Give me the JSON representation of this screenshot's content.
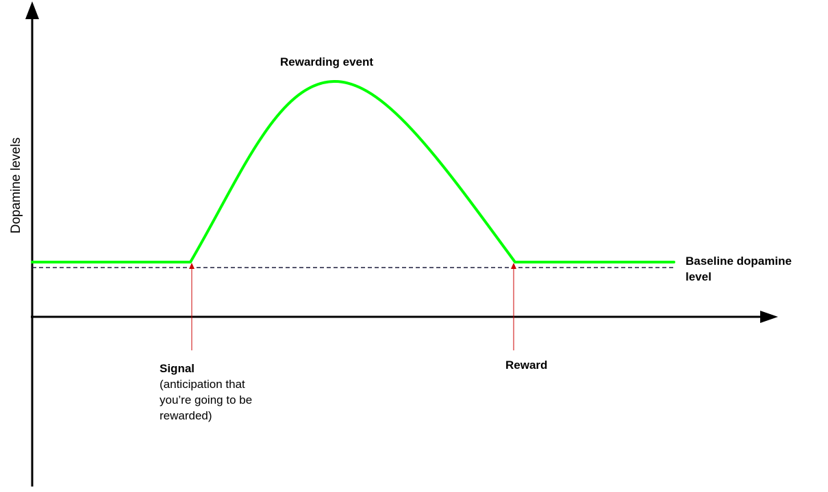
{
  "axes": {
    "y_label": "Dopamine levels"
  },
  "annotations": {
    "peak_label": "Rewarding event",
    "baseline_label_line1": "Baseline dopamine",
    "baseline_label_line2": "level",
    "signal_title": "Signal",
    "signal_desc_line1": "(anticipation that",
    "signal_desc_line2": "you’re going to be",
    "signal_desc_line3": "rewarded)",
    "reward_label": "Reward"
  },
  "colors": {
    "curve": "#00ff00",
    "axes": "#000000",
    "baseline_dash": "#1a1a3a",
    "marker": "#cc0000"
  }
}
